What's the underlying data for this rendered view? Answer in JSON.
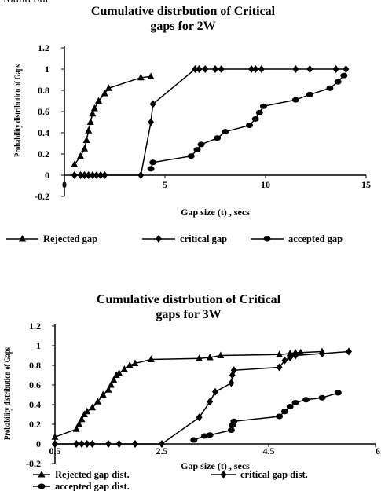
{
  "page_fragment_text": "found out",
  "chart_data": [
    {
      "type": "line",
      "title": [
        "Cumulative distrbution  of Critical",
        "gaps for 2W"
      ],
      "xlabel": "Gap size (t) , secs",
      "ylabel": "Probability distribution of Gaps",
      "xlim": [
        0,
        15
      ],
      "ylim": [
        -0.2,
        1.2
      ],
      "x_ticks": [
        "0",
        "5",
        "10",
        "15"
      ],
      "y_ticks": [
        "-0.2",
        "0",
        "0.2",
        "0.4",
        "0.6",
        "0.8",
        "1",
        "1.2"
      ],
      "grid": false,
      "legend_position": "bottom",
      "series": [
        {
          "name": "Rejected gap",
          "marker": "triangle",
          "x": [
            0.5,
            0.8,
            1.0,
            1.1,
            1.2,
            1.3,
            1.4,
            1.5,
            1.7,
            2.0,
            2.2,
            3.8,
            4.3
          ],
          "y": [
            0.1,
            0.18,
            0.25,
            0.33,
            0.42,
            0.5,
            0.58,
            0.63,
            0.7,
            0.77,
            0.82,
            0.92,
            0.93
          ]
        },
        {
          "name": "critical gap",
          "marker": "diamond",
          "x": [
            0.5,
            0.8,
            1.0,
            1.2,
            1.4,
            1.6,
            1.8,
            2.0,
            3.8,
            4.3,
            4.4,
            6.5,
            6.7,
            7.0,
            7.5,
            7.8,
            9.3,
            9.5,
            9.8,
            11.5,
            12.2,
            13.5,
            14.0
          ],
          "y": [
            0,
            0,
            0,
            0,
            0,
            0,
            0,
            0,
            0,
            0.5,
            0.67,
            1,
            1,
            1,
            1,
            1,
            1,
            1,
            1,
            1,
            1,
            1,
            1
          ]
        },
        {
          "name": "accepted gap",
          "marker": "circle",
          "x": [
            4.3,
            4.4,
            6.3,
            6.6,
            6.8,
            7.6,
            8.0,
            9.2,
            9.5,
            9.7,
            9.9,
            11.5,
            12.2,
            13.2,
            13.6,
            13.9
          ],
          "y": [
            0.06,
            0.12,
            0.18,
            0.24,
            0.29,
            0.35,
            0.41,
            0.47,
            0.53,
            0.59,
            0.65,
            0.71,
            0.76,
            0.82,
            0.88,
            0.94
          ]
        }
      ]
    },
    {
      "type": "line",
      "title": [
        "Cumulative distrbution  of Critical",
        "gaps for 3W"
      ],
      "xlabel": "Gap size (t) , secs",
      "ylabel": "Probability distribution of Gaps",
      "xlim": [
        0.5,
        6.5
      ],
      "ylim": [
        -0.2,
        1.2
      ],
      "x_ticks": [
        "0.5",
        "2.5",
        "4.5",
        "6."
      ],
      "y_ticks": [
        "-0.2",
        "0",
        "0.2",
        "0.4",
        "0.6",
        "0.8",
        "1",
        "1.2"
      ],
      "grid": false,
      "legend_position": "bottom",
      "series": [
        {
          "name": "Rejected gap dist.",
          "marker": "triangle",
          "x": [
            0.5,
            0.9,
            0.95,
            1.0,
            1.05,
            1.1,
            1.2,
            1.3,
            1.4,
            1.5,
            1.55,
            1.6,
            1.65,
            1.7,
            1.8,
            1.9,
            2.0,
            2.3,
            3.2,
            3.4,
            3.6,
            4.7,
            4.9,
            5.0,
            5.1,
            5.5
          ],
          "y": [
            0.07,
            0.15,
            0.2,
            0.25,
            0.3,
            0.33,
            0.37,
            0.43,
            0.5,
            0.55,
            0.6,
            0.65,
            0.7,
            0.72,
            0.76,
            0.8,
            0.82,
            0.86,
            0.87,
            0.88,
            0.9,
            0.91,
            0.92,
            0.93,
            0.93,
            0.94
          ]
        },
        {
          "name": "critical gap dist.",
          "marker": "diamond",
          "x": [
            0.5,
            0.9,
            1.0,
            1.1,
            1.2,
            1.5,
            1.7,
            2.0,
            2.5,
            3.2,
            3.4,
            3.5,
            3.8,
            3.82,
            3.85,
            4.7,
            4.8,
            4.9,
            5.0,
            5.5,
            6.0
          ],
          "y": [
            0,
            0,
            0,
            0,
            0,
            0,
            0,
            0,
            0,
            0.27,
            0.43,
            0.53,
            0.62,
            0.7,
            0.75,
            0.78,
            0.85,
            0.88,
            0.9,
            0.92,
            0.94
          ]
        },
        {
          "name": "accepted gap dist.",
          "marker": "circle",
          "x": [
            3.1,
            3.3,
            3.4,
            3.8,
            3.82,
            3.85,
            4.7,
            4.8,
            4.9,
            5.0,
            5.2,
            5.5,
            5.8
          ],
          "y": [
            0.04,
            0.08,
            0.09,
            0.14,
            0.19,
            0.23,
            0.28,
            0.33,
            0.38,
            0.42,
            0.45,
            0.47,
            0.52
          ]
        }
      ]
    }
  ]
}
